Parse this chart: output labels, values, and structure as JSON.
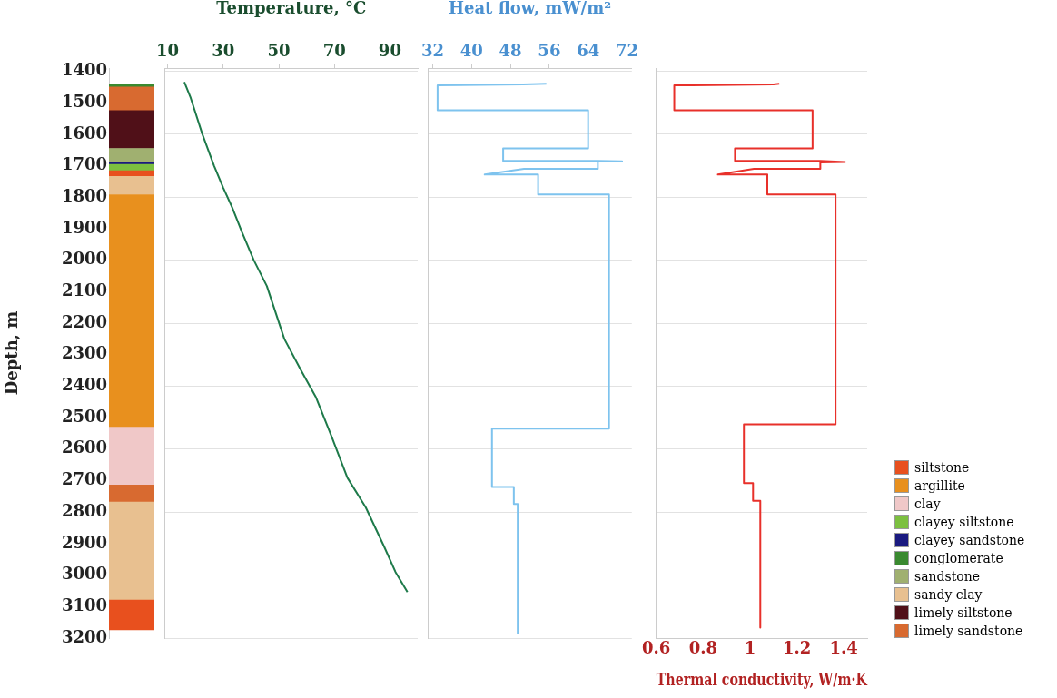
{
  "chart_data": [
    {
      "type": "bar",
      "ylabel": "Depth, m",
      "categories": [
        null
      ],
      "ylim": [
        3200,
        1390
      ],
      "yticks": [
        1400,
        1500,
        1600,
        1700,
        1800,
        1900,
        2000,
        2100,
        2200,
        2300,
        2400,
        2500,
        2600,
        2700,
        2800,
        2900,
        3000,
        3100,
        3200
      ],
      "legend": "bottom right",
      "series": [
        {
          "name": "siltstone",
          "color": "#e8501e",
          "values": [
            95
          ],
          "base": [
            3079
          ]
        },
        {
          "name": "argillite",
          "color": "#e8901e",
          "values": [
            736
          ],
          "base": [
            1792
          ]
        },
        {
          "name": "clay",
          "color": "#f0c8c8",
          "values": [
            184
          ],
          "base": [
            2528
          ]
        },
        {
          "name": "clayey siltstone",
          "color": "#7cc040",
          "values": [
            18
          ],
          "base": [
            1696
          ]
        },
        {
          "name": "clayey sandstone",
          "color": "#1a1a80",
          "values": [
            8
          ],
          "base": [
            1688
          ]
        },
        {
          "name": "conglomerate",
          "color": "#3a8a30",
          "values": [
            8
          ],
          "base": [
            1440
          ]
        },
        {
          "name": "sandstone",
          "color": "#a0b070",
          "values": [
            43
          ],
          "base": [
            1645
          ]
        },
        {
          "name": "sandy clay",
          "color": "#e8c090",
          "values": [
            58
          ],
          "base": [
            1734
          ]
        },
        {
          "name": "limely siltstone",
          "color": "#501018",
          "values": [
            120
          ],
          "base": [
            1525
          ]
        },
        {
          "name": "limely sandstone",
          "color": "#d86a30",
          "values": [
            77
          ],
          "base": [
            1448
          ]
        },
        {
          "color": "#e8c090",
          "values": [
            311
          ],
          "base": [
            2768
          ]
        },
        {
          "color": "#e8501e",
          "values": [
            20
          ],
          "base": [
            1714
          ]
        },
        {
          "color": "#d86a30",
          "values": [
            56
          ],
          "base": [
            2712
          ]
        }
      ]
    },
    {
      "type": "line",
      "xlabel": "Temperature, °C",
      "xlim": [
        9,
        100
      ],
      "xticks": [
        10,
        30,
        50,
        70,
        90
      ],
      "ylim": [
        3200,
        1390
      ],
      "yticks": [
        1400,
        1600,
        1800,
        2000,
        2200,
        2400,
        2600,
        2800,
        3000,
        3200
      ],
      "grid": "y",
      "tick_labels": "x",
      "series": [
        {
          "color": "#1e7a4a",
          "x": [
            16,
            18.3,
            22.5,
            26.7,
            30,
            33.3,
            36.7,
            41,
            45.7,
            52,
            58,
            63.3,
            69,
            74.7,
            81.3,
            88,
            92,
            96.3
          ],
          "values": [
            1434,
            1485,
            1600,
            1700,
            1770,
            1834,
            1910,
            2000,
            2082,
            2250,
            2350,
            2434,
            2560,
            2691,
            2785,
            2911,
            2990,
            3054
          ]
        }
      ]
    },
    {
      "type": "line",
      "xlabel": "Heat flow, mW/m²",
      "xlim": [
        31,
        73
      ],
      "xticks": [
        32,
        40,
        48,
        56,
        64,
        72
      ],
      "ylim": [
        3200,
        1390
      ],
      "yticks": [
        1400,
        1600,
        1800,
        2000,
        2200,
        2400,
        2600,
        2800,
        3000,
        3200
      ],
      "grid": "y",
      "tick_labels": "x",
      "series": [
        {
          "color": "#7ec3ee",
          "x": [
            55.4,
            50.6,
            33,
            33,
            64,
            64,
            46.5,
            46.5,
            66,
            71,
            66,
            66,
            50.8,
            42.7,
            53.7,
            53.7,
            68.3,
            68.3,
            44.2,
            44.2,
            48.7,
            48.7,
            49.5,
            49.5
          ],
          "values": [
            1440,
            1442,
            1445,
            1524,
            1524,
            1645,
            1645,
            1685,
            1685,
            1686,
            1687,
            1710,
            1710,
            1728,
            1728,
            1791,
            1791,
            2535,
            2535,
            2720,
            2720,
            2774,
            2774,
            3185
          ]
        }
      ]
    },
    {
      "type": "line",
      "xlabel": "Thermal conductivity, W/m·K",
      "xlim": [
        0.6,
        1.5
      ],
      "xticks": [
        0.6,
        0.8,
        1,
        1.2,
        1.4
      ],
      "ylim": [
        3200,
        1390
      ],
      "yticks": [
        1400,
        1600,
        1800,
        2000,
        2200,
        2400,
        2600,
        2800,
        3000,
        3200
      ],
      "grid": "y",
      "tick_labels": "x",
      "series": [
        {
          "color": "#e8302a",
          "x": [
            1.125,
            1.1,
            0.677,
            0.677,
            1.267,
            1.267,
            0.936,
            0.936,
            1.3,
            1.405,
            1.3,
            1.3,
            1.017,
            0.863,
            1.074,
            1.074,
            1.365,
            1.365,
            0.974,
            0.974,
            1.013,
            1.013,
            1.044,
            1.044
          ],
          "values": [
            1440,
            1442,
            1445,
            1524,
            1524,
            1645,
            1645,
            1685,
            1685,
            1688,
            1690,
            1710,
            1710,
            1728,
            1728,
            1791,
            1791,
            2521,
            2521,
            2708,
            2708,
            2764,
            2764,
            3167
          ]
        }
      ]
    }
  ]
}
